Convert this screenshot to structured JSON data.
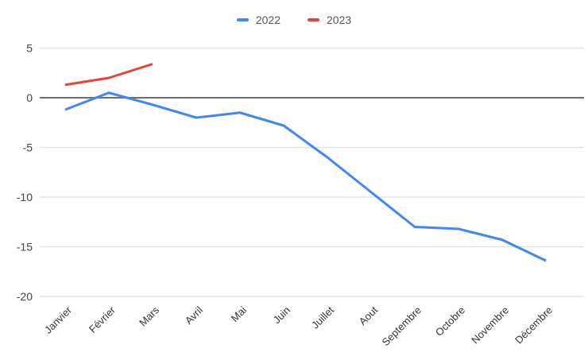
{
  "chart_data": {
    "type": "line",
    "title": "",
    "xlabel": "",
    "ylabel": "",
    "categories": [
      "Janvier",
      "Février",
      "Mars",
      "Avril",
      "Mai",
      "Juin",
      "Juillet",
      "Aout",
      "Septembre",
      "Octobre",
      "Novembre",
      "Décembre"
    ],
    "series": [
      {
        "name": "2022",
        "color": "#4285F4",
        "values": [
          -1.2,
          0.5,
          -0.7,
          -2.0,
          -1.5,
          -2.8,
          -6.0,
          -9.5,
          -13.0,
          -13.2,
          -14.3,
          -16.4
        ]
      },
      {
        "name": "2023",
        "color": "#EA4335",
        "values": [
          1.3,
          2.0,
          3.4,
          null,
          null,
          null,
          null,
          null,
          null,
          null,
          null,
          null
        ]
      }
    ],
    "ylim": [
      -20,
      5
    ],
    "yticks": [
      5,
      0,
      -5,
      -10,
      -15,
      -20
    ],
    "grid": true,
    "zero_line": true,
    "legend_position": "top",
    "x_label_rotation_deg": -45
  },
  "styles": {
    "gridline_color": "#e2e2e2",
    "zero_line_color": "#6e6e6e",
    "y_label_color": "#444444",
    "x_label_color": "#333333",
    "background_color": "#ffffff"
  }
}
